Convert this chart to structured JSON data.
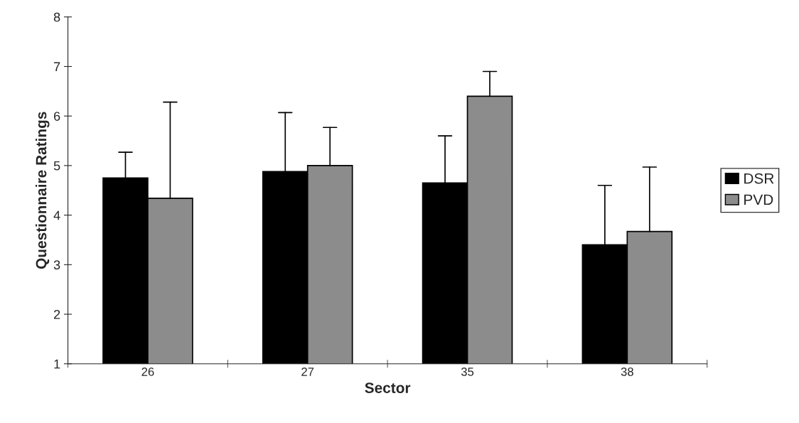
{
  "chart_data": {
    "type": "bar",
    "xlabel": "Sector",
    "ylabel": "Questionnaire Ratings",
    "categories": [
      "26",
      "27",
      "35",
      "38"
    ],
    "series": [
      {
        "name": "DSR",
        "color": "#000000",
        "values": [
          4.75,
          4.88,
          4.65,
          3.4
        ],
        "errors": [
          [
            4.75,
            5.27
          ],
          [
            4.88,
            6.07
          ],
          [
            4.65,
            5.6
          ],
          [
            3.4,
            4.6
          ]
        ]
      },
      {
        "name": "PVD",
        "color": "#8c8c8c",
        "values": [
          4.34,
          5.0,
          6.4,
          3.67
        ],
        "errors": [
          [
            4.34,
            6.28
          ],
          [
            5.0,
            5.77
          ],
          [
            6.4,
            6.9
          ],
          [
            3.67,
            4.97
          ]
        ]
      }
    ],
    "ylim": [
      1,
      8
    ],
    "yticks": [
      1,
      2,
      3,
      4,
      5,
      6,
      7,
      8
    ],
    "grid": false,
    "legend": "right"
  }
}
